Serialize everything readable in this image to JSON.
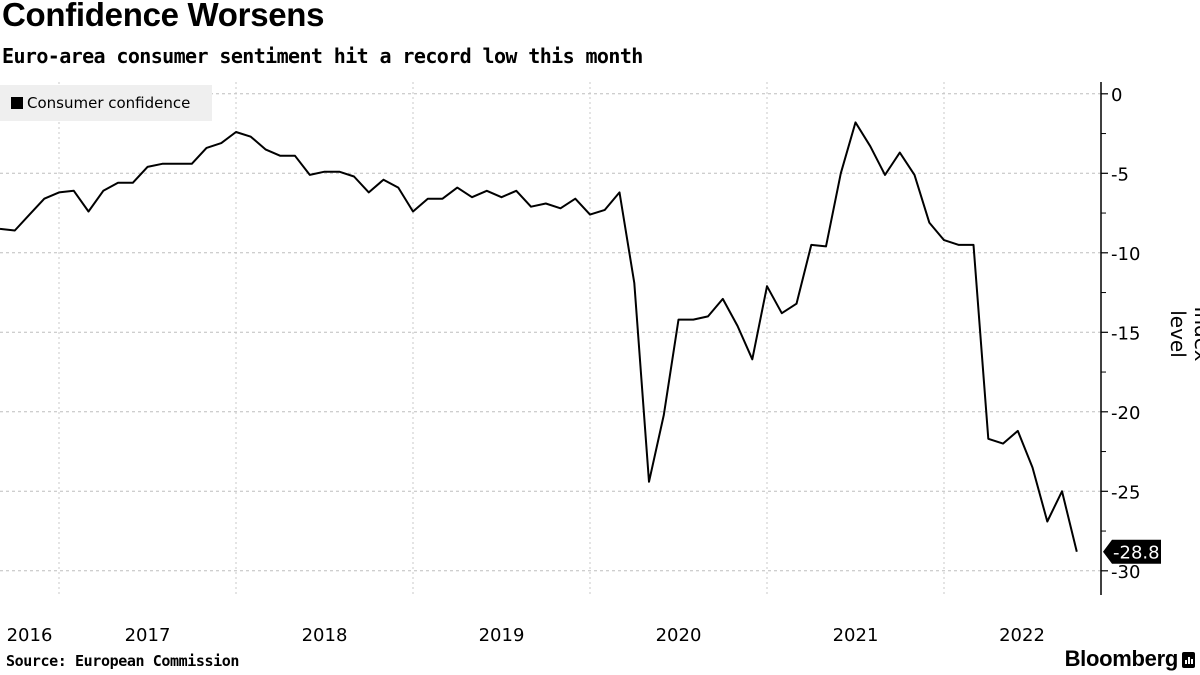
{
  "header": {
    "title": "Confidence Worsens",
    "subtitle": "Euro-area consumer sentiment hit a record low this month"
  },
  "footer": {
    "source": "Source: European Commission",
    "brand": "Bloomberg"
  },
  "chart_data": {
    "type": "line",
    "title": "Confidence Worsens",
    "subtitle": "Euro-area consumer sentiment hit a record low this month",
    "xlabel": "",
    "ylabel": "Index level",
    "ylim": [
      -31.5,
      0.8
    ],
    "yticks": [
      0,
      -5,
      -10,
      -15,
      -20,
      -25,
      -30
    ],
    "ytick_labels": [
      "0",
      "-5",
      "-10",
      "-15",
      "-20",
      "-25",
      "-30"
    ],
    "xtick_labels": [
      "2016",
      "2017",
      "2018",
      "2019",
      "2020",
      "2021",
      "2022"
    ],
    "grid": true,
    "legend_position": "top-left",
    "last_value_label": "-28.8",
    "x": [
      "2016-08",
      "2016-09",
      "2016-10",
      "2016-11",
      "2016-12",
      "2017-01",
      "2017-02",
      "2017-03",
      "2017-04",
      "2017-05",
      "2017-06",
      "2017-07",
      "2017-08",
      "2017-09",
      "2017-10",
      "2017-11",
      "2017-12",
      "2018-01",
      "2018-02",
      "2018-03",
      "2018-04",
      "2018-05",
      "2018-06",
      "2018-07",
      "2018-08",
      "2018-09",
      "2018-10",
      "2018-11",
      "2018-12",
      "2019-01",
      "2019-02",
      "2019-03",
      "2019-04",
      "2019-05",
      "2019-06",
      "2019-07",
      "2019-08",
      "2019-09",
      "2019-10",
      "2019-11",
      "2019-12",
      "2020-01",
      "2020-02",
      "2020-03",
      "2020-04",
      "2020-05",
      "2020-06",
      "2020-07",
      "2020-08",
      "2020-09",
      "2020-10",
      "2020-11",
      "2020-12",
      "2021-01",
      "2021-02",
      "2021-03",
      "2021-04",
      "2021-05",
      "2021-06",
      "2021-07",
      "2021-08",
      "2021-09",
      "2021-10",
      "2021-11",
      "2021-12",
      "2022-01",
      "2022-02",
      "2022-03",
      "2022-04",
      "2022-05",
      "2022-06",
      "2022-07",
      "2022-08",
      "2022-09"
    ],
    "series": [
      {
        "name": "Consumer confidence",
        "color": "#000000",
        "values": [
          -8.5,
          -8.6,
          -7.6,
          -6.6,
          -6.2,
          -6.1,
          -7.4,
          -6.1,
          -5.6,
          -5.6,
          -4.6,
          -4.4,
          -4.4,
          -4.4,
          -3.4,
          -3.1,
          -2.4,
          -2.7,
          -3.5,
          -3.9,
          -3.9,
          -5.1,
          -4.9,
          -4.9,
          -5.2,
          -6.2,
          -5.4,
          -5.9,
          -7.4,
          -6.6,
          -6.6,
          -5.9,
          -6.5,
          -6.1,
          -6.5,
          -6.1,
          -7.1,
          -6.9,
          -7.2,
          -6.6,
          -7.6,
          -7.3,
          -6.2,
          -11.9,
          -24.4,
          -20.2,
          -14.2,
          -14.2,
          -14.0,
          -12.9,
          -14.6,
          -16.7,
          -12.1,
          -13.8,
          -13.2,
          -9.5,
          -9.6,
          -5.0,
          -1.8,
          -3.3,
          -5.1,
          -3.7,
          -5.1,
          -8.1,
          -9.2,
          -9.5,
          -9.5,
          -21.7,
          -22.0,
          -21.2,
          -23.5,
          -26.9,
          -25.0,
          -28.8
        ]
      }
    ]
  }
}
